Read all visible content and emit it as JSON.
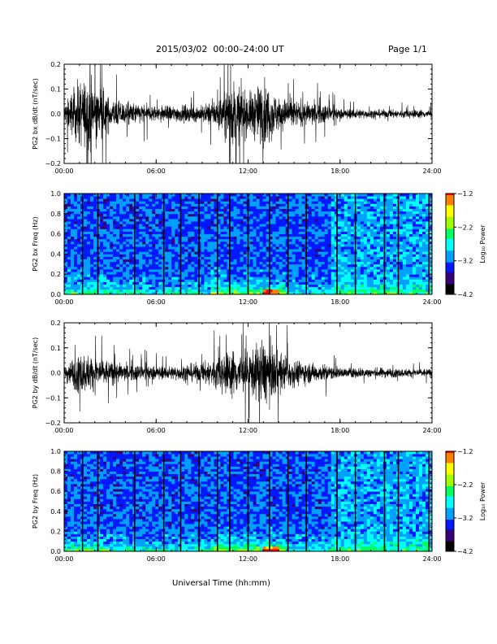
{
  "header": {
    "title": "2015/03/02  00:00–24:00 UT",
    "page": "Page 1/1"
  },
  "footer": {
    "xlabel": "Universal Time (hh:mm)"
  },
  "colors": {
    "waveform": "#000000",
    "colormap": [
      "#000000",
      "#3a0077",
      "#0019ff",
      "#00a0ff",
      "#00ffff",
      "#00ff60",
      "#a0ff00",
      "#ffff00",
      "#ff8000",
      "#ff0000"
    ]
  },
  "chart_data": [
    {
      "type": "line",
      "ylabel": "PG2 bx dB/dt (nT/sec)",
      "xlabel": "",
      "x_ticks": [
        "00:00",
        "06:00",
        "12:00",
        "18:00",
        "24:00"
      ],
      "xlim": [
        "00:00",
        "24:00"
      ],
      "y_ticks": [
        "0.2",
        "0.1",
        "0.0",
        "−0.1",
        "−0.2"
      ],
      "ylim": [
        -0.2,
        0.2
      ],
      "envelope_hours": [
        0,
        1,
        2,
        3,
        4,
        5,
        6,
        7,
        8,
        9,
        10,
        11,
        12,
        13,
        14,
        15,
        16,
        17,
        18,
        19,
        20,
        21,
        22,
        23,
        24
      ],
      "envelope_amplitude": [
        0.06,
        0.2,
        0.2,
        0.09,
        0.07,
        0.06,
        0.05,
        0.05,
        0.05,
        0.05,
        0.09,
        0.2,
        0.12,
        0.2,
        0.1,
        0.08,
        0.07,
        0.06,
        0.03,
        0.03,
        0.025,
        0.025,
        0.025,
        0.025,
        0.025
      ]
    },
    {
      "type": "heatmap",
      "ylabel": "PG2 bx Freq (Hz)",
      "xlabel": "",
      "x_ticks": [
        "00:00",
        "06:00",
        "12:00",
        "18:00",
        "24:00"
      ],
      "xlim": [
        "00:00",
        "24:00"
      ],
      "y_ticks": [
        "1.0",
        "0.8",
        "0.6",
        "0.4",
        "0.2",
        "0.0"
      ],
      "ylim": [
        0.0,
        1.0
      ],
      "colorbar": {
        "label": "Log₁₀ Power",
        "ticks": [
          "−1.2",
          "−2.2",
          "−3.2",
          "−4.2"
        ],
        "range": [
          -4.2,
          -1.2
        ]
      },
      "gap_hours": [
        1.2,
        2.2,
        4.6,
        6.5,
        7.6,
        8.8,
        10.0,
        10.8,
        12.0,
        13.4,
        14.6,
        15.8,
        17.8,
        19.0,
        20.9,
        21.8,
        23.8
      ]
    },
    {
      "type": "line",
      "ylabel": "PG2 by dB/dt (nT/sec)",
      "xlabel": "",
      "x_ticks": [
        "00:00",
        "06:00",
        "12:00",
        "18:00",
        "24:00"
      ],
      "xlim": [
        "00:00",
        "24:00"
      ],
      "y_ticks": [
        "0.2",
        "0.1",
        "0.0",
        "−0.1",
        "−0.2"
      ],
      "ylim": [
        -0.2,
        0.2
      ],
      "envelope_hours": [
        0,
        1,
        2,
        3,
        4,
        5,
        6,
        7,
        8,
        9,
        10,
        11,
        12,
        13,
        14,
        15,
        16,
        17,
        18,
        19,
        20,
        21,
        22,
        23,
        24
      ],
      "envelope_amplitude": [
        0.05,
        0.12,
        0.1,
        0.07,
        0.05,
        0.05,
        0.04,
        0.04,
        0.05,
        0.06,
        0.1,
        0.14,
        0.12,
        0.2,
        0.12,
        0.08,
        0.06,
        0.05,
        0.03,
        0.03,
        0.03,
        0.03,
        0.025,
        0.025,
        0.025
      ]
    },
    {
      "type": "heatmap",
      "ylabel": "PG2 by Freq (Hz)",
      "xlabel": "",
      "x_ticks": [
        "00:00",
        "06:00",
        "12:00",
        "18:00",
        "24:00"
      ],
      "xlim": [
        "00:00",
        "24:00"
      ],
      "y_ticks": [
        "1.0",
        "0.8",
        "0.6",
        "0.4",
        "0.2",
        "0.0"
      ],
      "ylim": [
        0.0,
        1.0
      ],
      "colorbar": {
        "label": "Log₁₀ Power",
        "ticks": [
          "−1.2",
          "−2.2",
          "−3.2",
          "−4.2"
        ],
        "range": [
          -4.2,
          -1.2
        ]
      },
      "gap_hours": [
        1.2,
        2.2,
        4.6,
        6.5,
        7.6,
        8.8,
        10.0,
        10.8,
        12.0,
        13.4,
        14.6,
        15.8,
        17.8,
        19.0,
        20.9,
        21.8,
        23.8
      ]
    }
  ]
}
